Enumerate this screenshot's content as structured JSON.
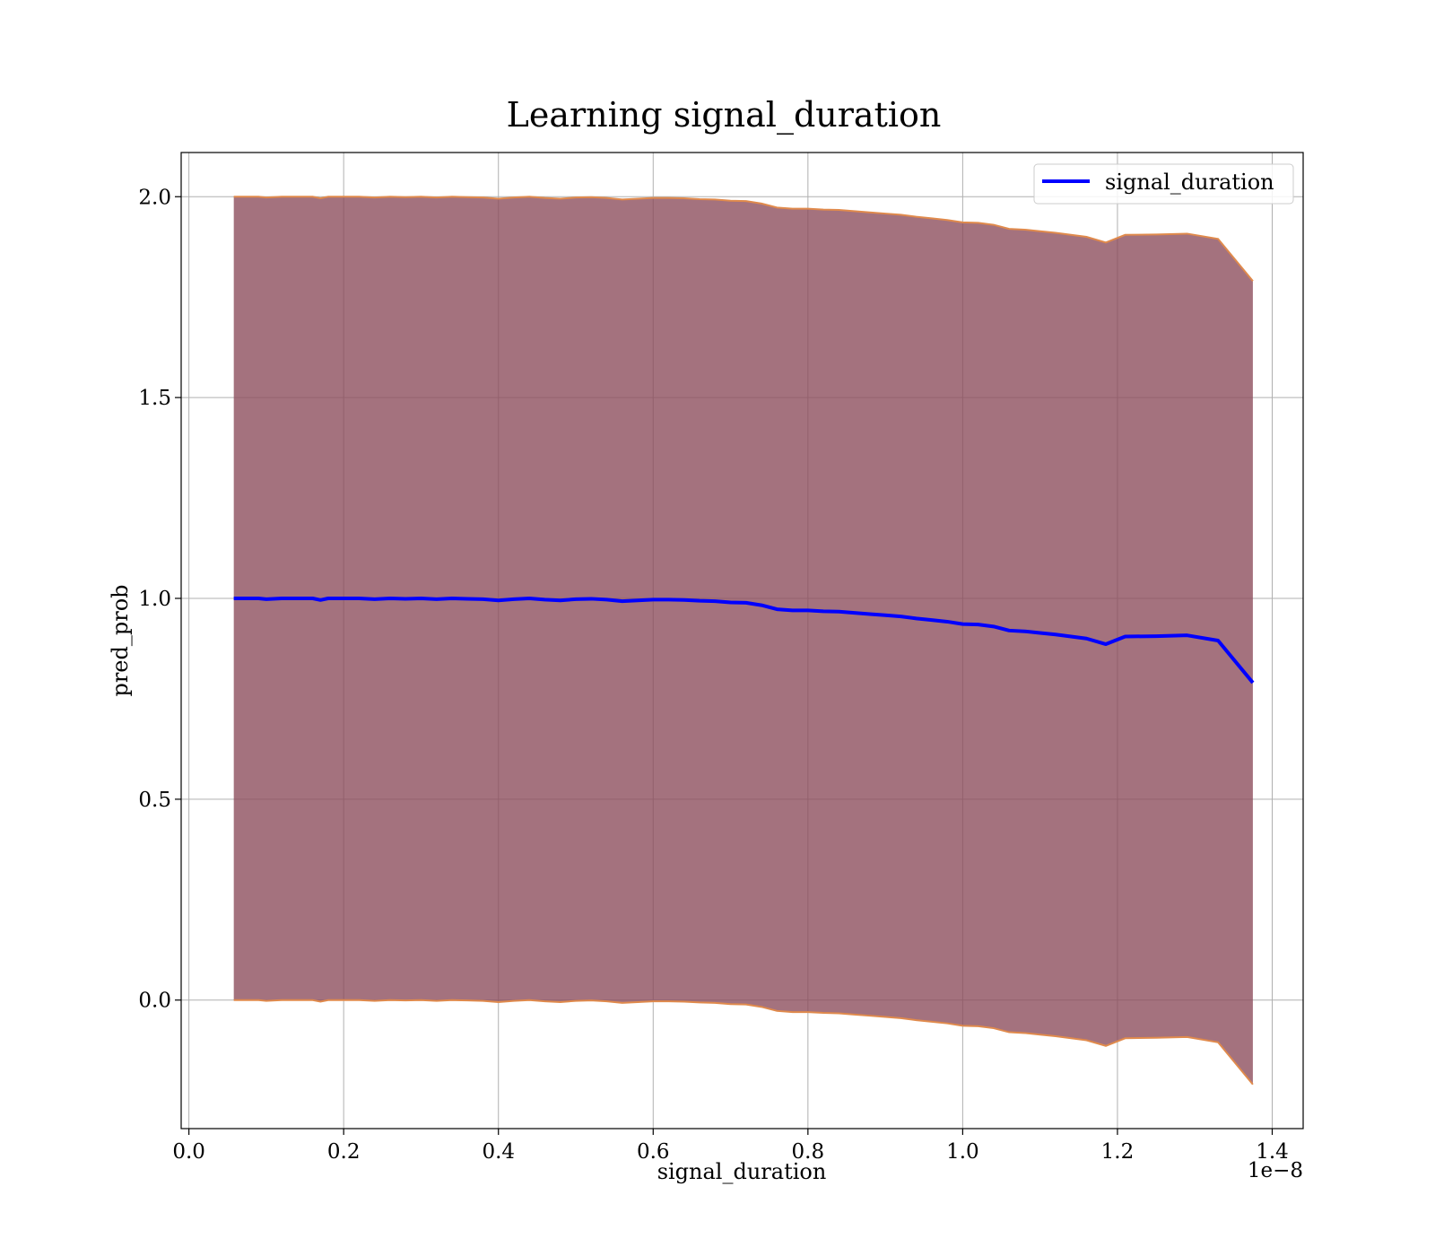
{
  "chart_data": {
    "type": "line",
    "title": "Learning signal_duration",
    "xlabel": "signal_duration",
    "ylabel": "pred_prob",
    "x_offset_text": "1e−8",
    "xlim": [
      -0.01,
      1.44
    ],
    "ylim": [
      -0.32,
      2.11
    ],
    "x_ticks": [
      0.0,
      0.2,
      0.4,
      0.6,
      0.8,
      1.0,
      1.2,
      1.4
    ],
    "x_tick_labels": [
      "0.0",
      "0.2",
      "0.4",
      "0.6",
      "0.8",
      "1.0",
      "1.2",
      "1.4"
    ],
    "y_ticks": [
      0.0,
      0.5,
      1.0,
      1.5,
      2.0
    ],
    "y_tick_labels": [
      "0.0",
      "0.5",
      "1.0",
      "1.5",
      "2.0"
    ],
    "grid": true,
    "legend_position": "top-right",
    "series": [
      {
        "name": "signal_duration",
        "color": "#0000ff",
        "x": [
          0.058,
          0.07,
          0.08,
          0.09,
          0.1,
          0.12,
          0.14,
          0.16,
          0.17,
          0.18,
          0.2,
          0.22,
          0.24,
          0.26,
          0.28,
          0.3,
          0.32,
          0.34,
          0.36,
          0.38,
          0.4,
          0.42,
          0.44,
          0.46,
          0.48,
          0.5,
          0.52,
          0.54,
          0.56,
          0.58,
          0.6,
          0.62,
          0.64,
          0.66,
          0.68,
          0.7,
          0.72,
          0.74,
          0.76,
          0.78,
          0.8,
          0.82,
          0.84,
          0.86,
          0.88,
          0.9,
          0.92,
          0.94,
          0.96,
          0.98,
          1.0,
          1.02,
          1.04,
          1.06,
          1.08,
          1.1,
          1.12,
          1.14,
          1.16,
          1.185,
          1.21,
          1.25,
          1.29,
          1.33,
          1.375
        ],
        "values": [
          1.0,
          1.0,
          1.0,
          1.0,
          0.998,
          1.0,
          1.0,
          1.0,
          0.996,
          1.0,
          1.0,
          1.0,
          0.998,
          1.0,
          0.999,
          1.0,
          0.998,
          1.0,
          0.999,
          0.998,
          0.995,
          0.998,
          1.0,
          0.997,
          0.995,
          0.998,
          0.999,
          0.997,
          0.993,
          0.995,
          0.997,
          0.997,
          0.996,
          0.994,
          0.993,
          0.99,
          0.989,
          0.983,
          0.973,
          0.97,
          0.97,
          0.968,
          0.967,
          0.964,
          0.961,
          0.958,
          0.955,
          0.95,
          0.946,
          0.942,
          0.936,
          0.935,
          0.93,
          0.92,
          0.918,
          0.914,
          0.91,
          0.905,
          0.9,
          0.886,
          0.905,
          0.906,
          0.908,
          0.895,
          0.79
        ]
      }
    ],
    "band": {
      "color": "#8b4a5a",
      "edge_color": "#e08a4c",
      "half_width": 1.0
    }
  }
}
